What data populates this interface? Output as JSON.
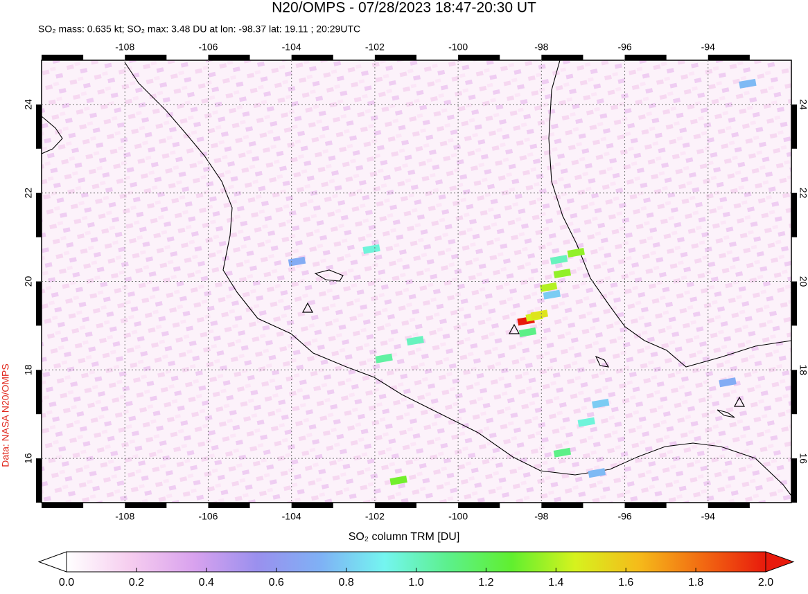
{
  "chart_data": {
    "type": "map",
    "title": "N20/OMPS - 07/28/2023 18:47-20:30 UT",
    "subtitle": "SO₂ mass: 0.635 kt; SO₂ max: 3.48 DU at lon: -98.37 lat: 19.11 ; 20:29UTC",
    "source": "Data: NASA N20/OMPS",
    "colorbar_label": "SO₂ column TRM [DU]",
    "xlim": [
      -110,
      -92
    ],
    "ylim": [
      15,
      25
    ],
    "xticks": [
      -108,
      -106,
      -104,
      -102,
      -100,
      -98,
      -96,
      -94
    ],
    "yticks": [
      16,
      18,
      20,
      22,
      24
    ],
    "grid": true,
    "colorbar": {
      "lim": [
        0,
        2
      ],
      "ticks": [
        {
          "value": 0,
          "label": "0.0"
        },
        0.2,
        0.4,
        0.6,
        0.8,
        {
          "value": 1,
          "label": "1.0"
        },
        1.2,
        1.4,
        1.6,
        1.8,
        {
          "value": 2,
          "label": "2.0"
        }
      ],
      "colormap": [
        "#ffffff",
        "#f6cdef",
        "#d9a2ee",
        "#9a90ee",
        "#7fb1f5",
        "#74f5f0",
        "#5cf08c",
        "#60ef2f",
        "#d6f21e",
        "#f5bb1a",
        "#f26a12",
        "#e81a0c"
      ]
    },
    "points": {
      "lon": [
        -98.37,
        -98.17,
        -98.05,
        -97.83,
        -97.5,
        -97.58,
        -97.17,
        -97.75,
        -98.33,
        -101.03,
        -97.5,
        -96.92,
        -96.58,
        -96.67,
        -101.43,
        -93.05,
        -93.53,
        -101.78,
        -103.87,
        -102.08
      ],
      "lat": [
        19.11,
        19.2,
        19.25,
        19.87,
        20.18,
        20.49,
        20.65,
        19.7,
        18.85,
        18.66,
        16.13,
        16.82,
        17.24,
        15.67,
        15.5,
        24.47,
        17.72,
        18.26,
        20.45,
        20.73
      ],
      "values": [
        3.48,
        1.45,
        1.5,
        1.4,
        1.35,
        1.0,
        1.35,
        0.8,
        1.1,
        1.0,
        1.1,
        0.95,
        0.8,
        0.75,
        1.3,
        0.75,
        0.7,
        1.05,
        0.7,
        0.95
      ]
    }
  }
}
